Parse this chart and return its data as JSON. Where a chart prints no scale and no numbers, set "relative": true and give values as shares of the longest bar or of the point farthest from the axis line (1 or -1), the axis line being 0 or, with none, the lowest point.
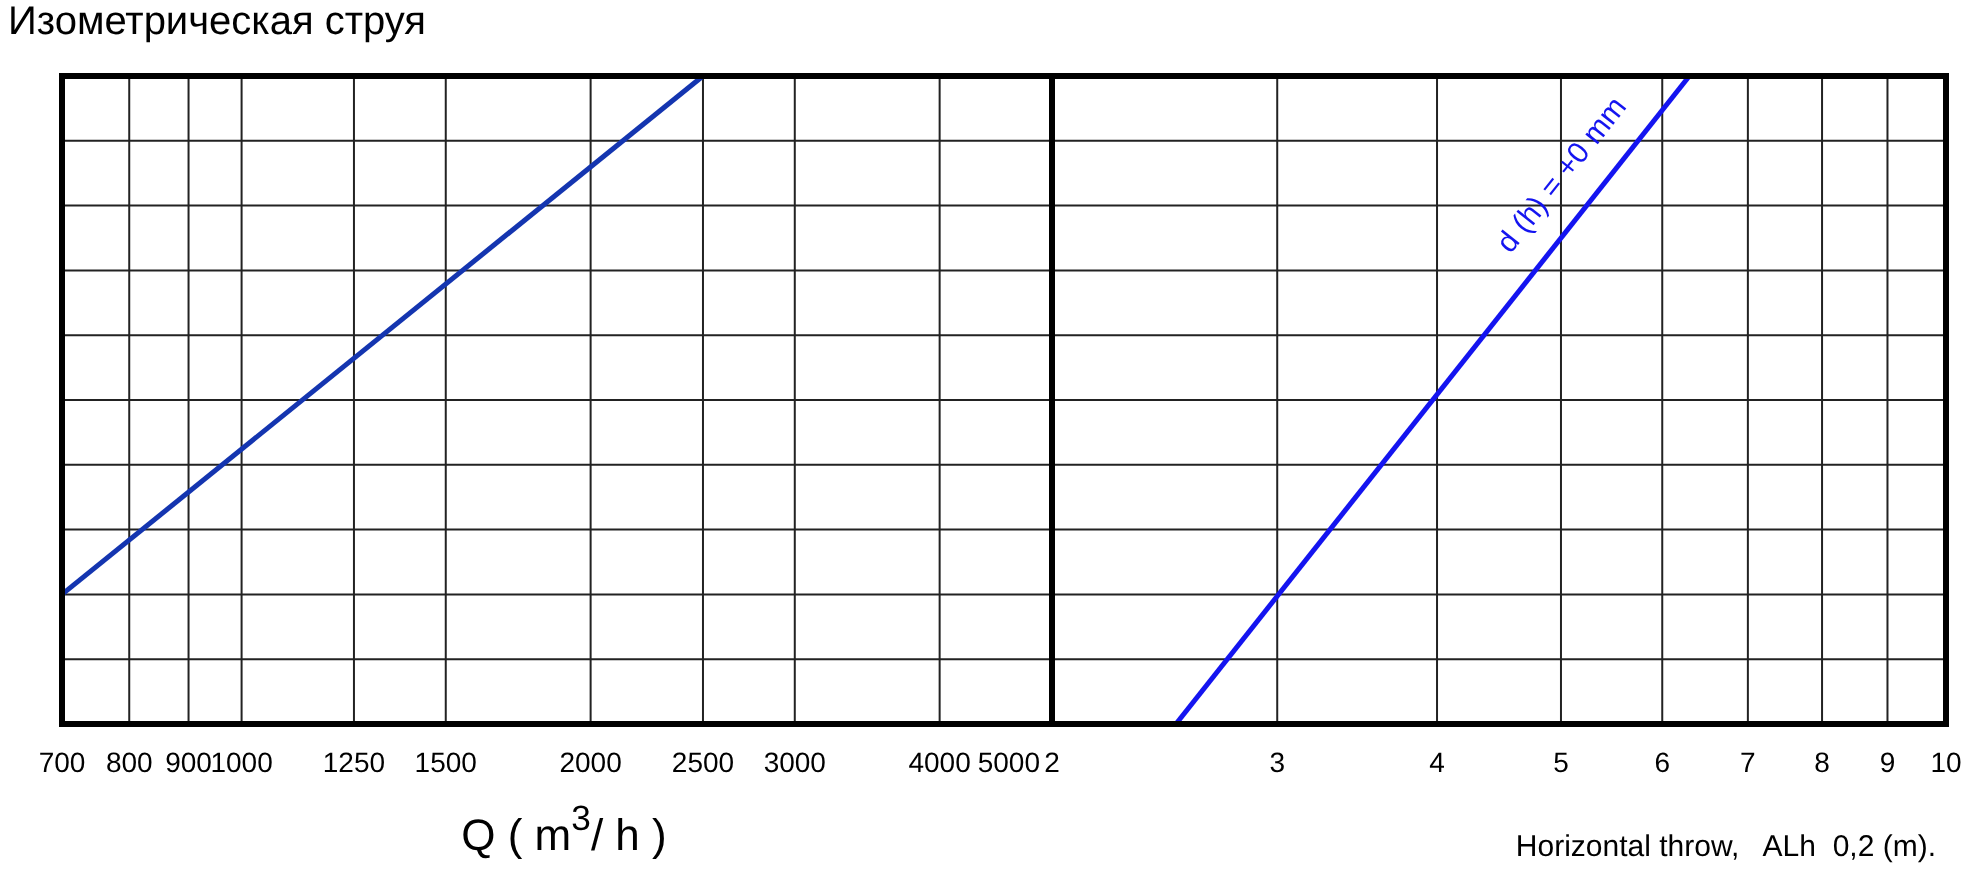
{
  "chart_data": [
    {
      "type": "line",
      "title": "Изометрическая струя",
      "xlabel": "Q ( m$^{3}$/ h )",
      "x": [
        700,
        2500
      ],
      "relative": true,
      "log": "x",
      "grid": true,
      "tick_labels": "x",
      "xlim": [
        700,
        5000
      ],
      "xticks": [
        700,
        800,
        900,
        1000,
        1250,
        1500,
        2000,
        2500,
        3000,
        4000,
        5000
      ],
      "series": [
        {
          "color": "#1435b0",
          "values": [
            0.2,
            1
          ]
        }
      ]
    },
    {
      "type": "line",
      "xlabel": "Horizontal throw,   ALh  0,2 (m).",
      "x": [
        2.5,
        6.3
      ],
      "relative": true,
      "log": "x",
      "grid": true,
      "tick_labels": "x",
      "xlim": [
        2,
        10
      ],
      "xticks": [
        2,
        3,
        4,
        5,
        6,
        7,
        8,
        9,
        10
      ],
      "annotations": [
        "d (h) = +0 mm"
      ],
      "series": [
        {
          "color": "#1414f0",
          "values": [
            0,
            1
          ]
        }
      ]
    }
  ]
}
